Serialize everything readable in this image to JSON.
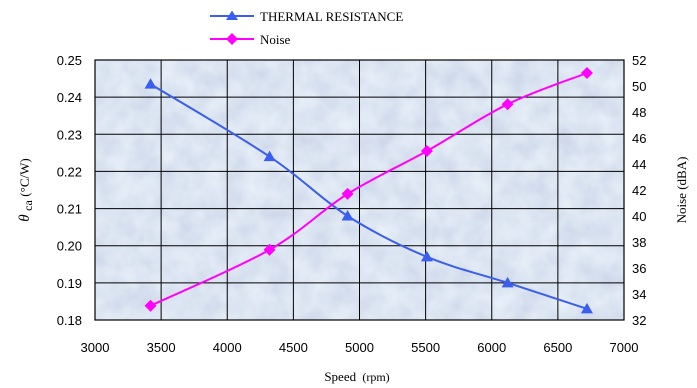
{
  "chart_data": {
    "type": "line",
    "x": [
      3420,
      4320,
      4910,
      5510,
      6120,
      6720
    ],
    "series": [
      {
        "name": "THERMAL RESISTANCE",
        "axis": "left",
        "color": "#3a5ef0",
        "marker": "triangle",
        "values": [
          0.2435,
          0.224,
          0.208,
          0.197,
          0.19,
          0.183
        ]
      },
      {
        "name": "Noise",
        "axis": "right",
        "color": "#ff00ff",
        "marker": "diamond",
        "values": [
          33.1,
          37.4,
          41.7,
          45.0,
          48.6,
          51.0
        ]
      }
    ],
    "xlabel_main": "Speed",
    "xlabel_unit": "(rpm)",
    "ylabel_left_symbol": "θ",
    "ylabel_left_sub": "ca",
    "ylabel_left_unit": "(°C/W)",
    "ylabel_right": "Noise (dBA)",
    "xlim": [
      3000,
      7000
    ],
    "ylim_left": [
      0.18,
      0.25
    ],
    "ylim_right": [
      32,
      52
    ],
    "x_ticks": [
      "3000",
      "3500",
      "4000",
      "4500",
      "5000",
      "5500",
      "6000",
      "6500",
      "7000"
    ],
    "y_left_ticks": [
      "0.18",
      "0.19",
      "0.20",
      "0.21",
      "0.22",
      "0.23",
      "0.24",
      "0.25"
    ],
    "y_right_ticks": [
      "32",
      "34",
      "36",
      "38",
      "40",
      "42",
      "44",
      "46",
      "48",
      "50",
      "52"
    ],
    "grid": true,
    "legend_position": "top-center",
    "background": "marbled light blue"
  }
}
